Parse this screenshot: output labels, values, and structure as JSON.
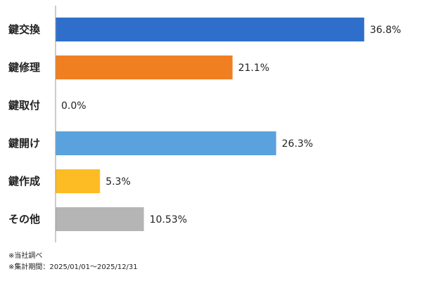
{
  "chart_data": {
    "type": "bar",
    "orientation": "horizontal",
    "categories": [
      "鍵交換",
      "鍵修理",
      "鍵取付",
      "鍵開け",
      "鍵作成",
      "その他"
    ],
    "values": [
      36.8,
      21.1,
      0.0,
      26.3,
      5.3,
      10.53
    ],
    "value_labels": [
      "36.8%",
      "21.1%",
      "0.0%",
      "26.3%",
      "5.3%",
      "10.53%"
    ],
    "colors": [
      "#2f6fcb",
      "#f07f22",
      "#2f6fcb",
      "#5aa2de",
      "#fdbc24",
      "#b5b5b5"
    ],
    "xlim": [
      0,
      40
    ],
    "grid": false,
    "legend": "none"
  },
  "notes": {
    "line1": "※当社調べ",
    "line2": "※集計期間：2025/01/01～2025/12/31"
  }
}
